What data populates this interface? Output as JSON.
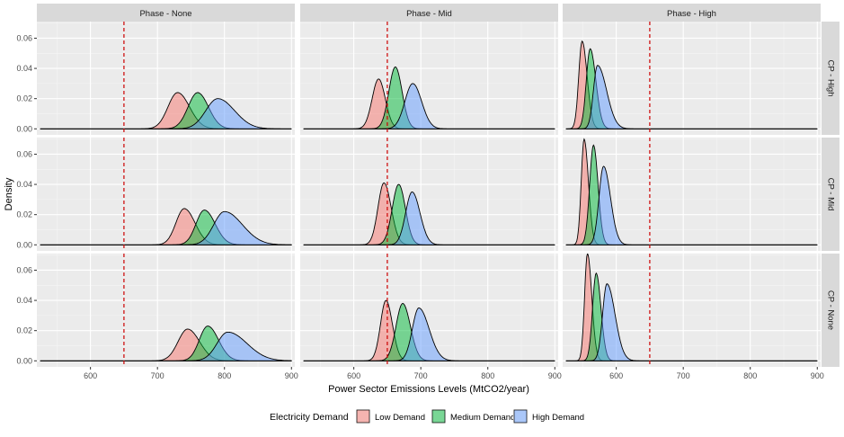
{
  "chart_data": {
    "type": "area",
    "xlabel": "Power Sector Emissions Levels (MtCO2/year)",
    "ylabel": "Density",
    "xlim": [
      520,
      905
    ],
    "ylim": [
      -0.004,
      0.071
    ],
    "x_ticks": [
      600,
      700,
      800,
      900
    ],
    "y_ticks": [
      0.0,
      0.02,
      0.04,
      0.06
    ],
    "y_tick_labels": [
      "0.00",
      "0.02",
      "0.04",
      "0.06"
    ],
    "grid": true,
    "reference_line": {
      "x": 650,
      "style": "dashed",
      "color": "#cc0000"
    },
    "column_strips": [
      "Phase - None",
      "Phase - Mid",
      "Phase - High"
    ],
    "row_strips": [
      "CP - High",
      "CP - Mid",
      "CP - None"
    ],
    "legend": {
      "title": "Electricity Demand",
      "position": "bottom",
      "entries": [
        "Low Demand",
        "Medium Demand",
        "High Demand"
      ]
    },
    "colors": {
      "Low Demand": "#f8766d",
      "Medium Demand": "#00ba38",
      "High Demand": "#619cff"
    },
    "panels": [
      {
        "row": "CP - High",
        "col": "Phase - None",
        "series": [
          {
            "name": "Low Demand",
            "peak_x": 730,
            "peak_density": 0.024,
            "x_range": [
              690,
              780
            ]
          },
          {
            "name": "Medium Demand",
            "peak_x": 760,
            "peak_density": 0.024,
            "x_range": [
              720,
              805
            ]
          },
          {
            "name": "High Demand",
            "peak_x": 790,
            "peak_density": 0.02,
            "x_range": [
              740,
              860
            ]
          }
        ]
      },
      {
        "row": "CP - High",
        "col": "Phase - Mid",
        "series": [
          {
            "name": "Low Demand",
            "peak_x": 637,
            "peak_density": 0.033,
            "x_range": [
              610,
              665
            ]
          },
          {
            "name": "Medium Demand",
            "peak_x": 662,
            "peak_density": 0.041,
            "x_range": [
              635,
              690
            ]
          },
          {
            "name": "High Demand",
            "peak_x": 688,
            "peak_density": 0.03,
            "x_range": [
              655,
              725
            ]
          }
        ]
      },
      {
        "row": "CP - High",
        "col": "Phase - High",
        "series": [
          {
            "name": "Low Demand",
            "peak_x": 549,
            "peak_density": 0.058,
            "x_range": [
              535,
              570
            ]
          },
          {
            "name": "Medium Demand",
            "peak_x": 561,
            "peak_density": 0.053,
            "x_range": [
              545,
              585
            ]
          },
          {
            "name": "High Demand",
            "peak_x": 572,
            "peak_density": 0.042,
            "x_range": [
              555,
              610
            ]
          }
        ]
      },
      {
        "row": "CP - Mid",
        "col": "Phase - None",
        "series": [
          {
            "name": "Low Demand",
            "peak_x": 740,
            "peak_density": 0.024,
            "x_range": [
              705,
              785
            ]
          },
          {
            "name": "Medium Demand",
            "peak_x": 770,
            "peak_density": 0.023,
            "x_range": [
              735,
              815
            ]
          },
          {
            "name": "High Demand",
            "peak_x": 800,
            "peak_density": 0.022,
            "x_range": [
              755,
              875
            ]
          }
        ]
      },
      {
        "row": "CP - Mid",
        "col": "Phase - Mid",
        "series": [
          {
            "name": "Low Demand",
            "peak_x": 645,
            "peak_density": 0.041,
            "x_range": [
              620,
              675
            ]
          },
          {
            "name": "Medium Demand",
            "peak_x": 667,
            "peak_density": 0.04,
            "x_range": [
              640,
              695
            ]
          },
          {
            "name": "High Demand",
            "peak_x": 687,
            "peak_density": 0.035,
            "x_range": [
              660,
              720
            ]
          }
        ]
      },
      {
        "row": "CP - Mid",
        "col": "Phase - High",
        "series": [
          {
            "name": "Low Demand",
            "peak_x": 552,
            "peak_density": 0.07,
            "x_range": [
              540,
              570
            ]
          },
          {
            "name": "Medium Demand",
            "peak_x": 566,
            "peak_density": 0.066,
            "x_range": [
              550,
              585
            ]
          },
          {
            "name": "High Demand",
            "peak_x": 581,
            "peak_density": 0.052,
            "x_range": [
              562,
              610
            ]
          }
        ]
      },
      {
        "row": "CP - None",
        "col": "Phase - None",
        "series": [
          {
            "name": "Low Demand",
            "peak_x": 745,
            "peak_density": 0.021,
            "x_range": [
              705,
              795
            ]
          },
          {
            "name": "Medium Demand",
            "peak_x": 775,
            "peak_density": 0.023,
            "x_range": [
              740,
              820
            ]
          },
          {
            "name": "High Demand",
            "peak_x": 805,
            "peak_density": 0.019,
            "x_range": [
              760,
              885
            ]
          }
        ]
      },
      {
        "row": "CP - None",
        "col": "Phase - Mid",
        "series": [
          {
            "name": "Low Demand",
            "peak_x": 648,
            "peak_density": 0.04,
            "x_range": [
              625,
              675
            ]
          },
          {
            "name": "Medium Demand",
            "peak_x": 673,
            "peak_density": 0.038,
            "x_range": [
              645,
              705
            ]
          },
          {
            "name": "High Demand",
            "peak_x": 697,
            "peak_density": 0.035,
            "x_range": [
              670,
              740
            ]
          }
        ]
      },
      {
        "row": "CP - None",
        "col": "Phase - High",
        "series": [
          {
            "name": "Low Demand",
            "peak_x": 557,
            "peak_density": 0.071,
            "x_range": [
              545,
              575
            ]
          },
          {
            "name": "Medium Demand",
            "peak_x": 570,
            "peak_density": 0.058,
            "x_range": [
              555,
              590
            ]
          },
          {
            "name": "High Demand",
            "peak_x": 586,
            "peak_density": 0.051,
            "x_range": [
              568,
              620
            ]
          }
        ]
      }
    ]
  }
}
